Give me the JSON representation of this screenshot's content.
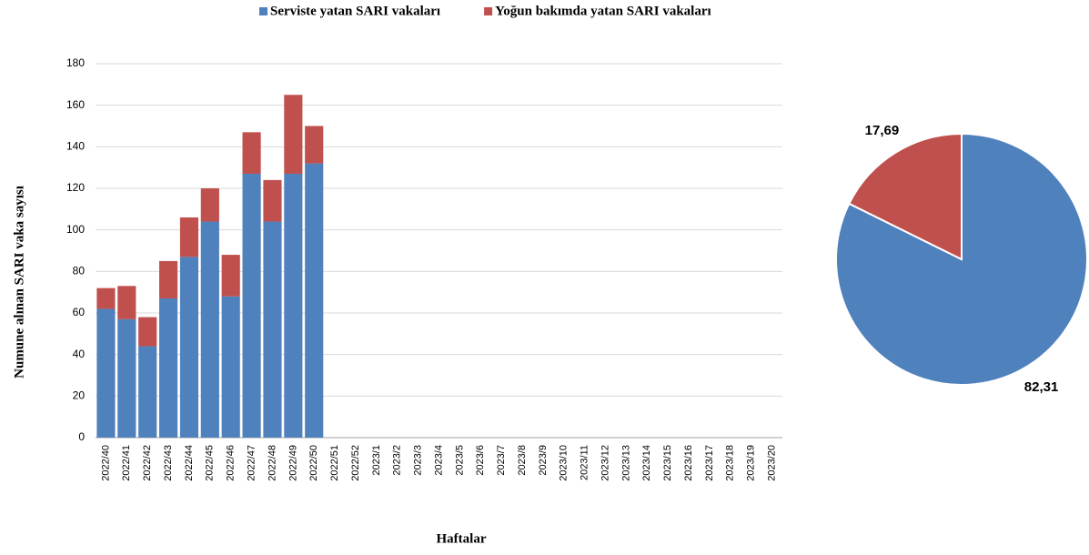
{
  "chart_data": [
    {
      "type": "bar",
      "stacked": true,
      "y_label": "Numune alınan SARI vaka sayısı",
      "x_label": "Haftalar",
      "categories": [
        "2022/40",
        "2022/41",
        "2022/42",
        "2022/43",
        "2022/44",
        "2022/45",
        "2022/46",
        "2022/47",
        "2022/48",
        "2022/49",
        "2022/50",
        "2022/51",
        "2022/52",
        "2023/1",
        "2023/2",
        "2023/3",
        "2023/4",
        "2023/5",
        "2023/6",
        "2023/7",
        "2023/8",
        "2023/9",
        "2023/10",
        "2023/11",
        "2023/12",
        "2023/13",
        "2023/14",
        "2023/15",
        "2023/16",
        "2023/17",
        "2023/18",
        "2023/19",
        "2023/20"
      ],
      "series": [
        {
          "name": "Serviste yatan SARI vakaları",
          "color": "#4f81bd",
          "values": [
            62,
            57,
            44,
            67,
            87,
            104,
            68,
            127,
            104,
            127,
            132,
            null,
            null,
            null,
            null,
            null,
            null,
            null,
            null,
            null,
            null,
            null,
            null,
            null,
            null,
            null,
            null,
            null,
            null,
            null,
            null,
            null,
            null
          ]
        },
        {
          "name": "Yoğun bakımda yatan SARI vakaları",
          "color": "#c0504d",
          "values": [
            10,
            16,
            14,
            18,
            19,
            16,
            20,
            20,
            20,
            38,
            18,
            null,
            null,
            null,
            null,
            null,
            null,
            null,
            null,
            null,
            null,
            null,
            null,
            null,
            null,
            null,
            null,
            null,
            null,
            null,
            null,
            null,
            null
          ]
        }
      ],
      "ylim": [
        0,
        180
      ],
      "yticks": [
        0,
        20,
        40,
        60,
        80,
        100,
        120,
        140,
        160,
        180
      ],
      "grid": true,
      "legend": "top"
    },
    {
      "type": "pie",
      "values": [
        82.31,
        17.69
      ],
      "value_labels": [
        "82,31",
        "17,69"
      ],
      "colors": [
        "#4f81bd",
        "#c0504d"
      ]
    }
  ]
}
